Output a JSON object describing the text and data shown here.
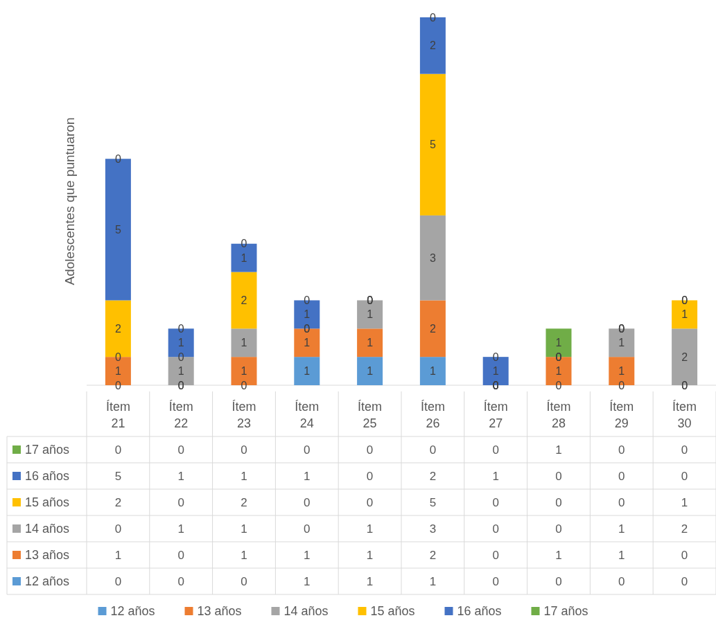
{
  "chart_data": {
    "type": "bar",
    "stacked": true,
    "ylabel": "Adolescentes que puntuaron",
    "legend": "bottom",
    "categories": [
      "Ítem 21",
      "Ítem 22",
      "Ítem 23",
      "Ítem 24",
      "Ítem 25",
      "Ítem 26",
      "Ítem 27",
      "Ítem 28",
      "Ítem 29",
      "Ítem 30"
    ],
    "series": [
      {
        "name": "12 años",
        "color": "#5b9bd5",
        "values": [
          0,
          0,
          0,
          1,
          1,
          1,
          0,
          0,
          0,
          0
        ],
        "value_labels": [
          "0",
          "0",
          "0",
          "1",
          "1",
          "1",
          "0",
          "0",
          "0",
          "0"
        ]
      },
      {
        "name": "13 años",
        "color": "#ed7d31",
        "values": [
          1,
          0,
          1,
          1,
          1,
          2,
          0,
          1,
          1,
          0
        ],
        "value_labels": [
          "1",
          "0",
          "1",
          "1",
          "1",
          "2",
          "0",
          "1",
          "1",
          "0"
        ]
      },
      {
        "name": "14 años",
        "color": "#a5a5a5",
        "values": [
          0,
          1,
          1,
          0,
          1,
          3,
          0,
          0,
          1,
          2
        ],
        "value_labels": [
          "0",
          "1",
          "1",
          "0",
          "1",
          "3",
          "0",
          "0",
          "1",
          "2"
        ]
      },
      {
        "name": "15 años",
        "color": "#ffc000",
        "values": [
          2,
          0,
          2,
          0,
          0,
          5,
          0,
          0,
          0,
          1
        ],
        "value_labels": [
          "2",
          "0",
          "2",
          "0",
          "0",
          "5",
          "0",
          "0",
          "0",
          "1"
        ]
      },
      {
        "name": "16 años",
        "color": "#4472c4",
        "values": [
          5,
          1,
          1,
          1,
          0,
          2,
          1,
          0,
          0,
          0
        ],
        "value_labels": [
          "5",
          "1",
          "1",
          "1",
          "0",
          "2",
          "1",
          "0",
          "0",
          "0"
        ]
      },
      {
        "name": "17 años",
        "color": "#70ad47",
        "values": [
          0,
          0,
          0,
          0,
          0,
          0,
          0,
          1,
          0,
          0
        ],
        "value_labels": [
          "0",
          "0",
          "0",
          "0",
          "0",
          "0",
          "0",
          "1",
          "0",
          "0"
        ]
      }
    ]
  }
}
